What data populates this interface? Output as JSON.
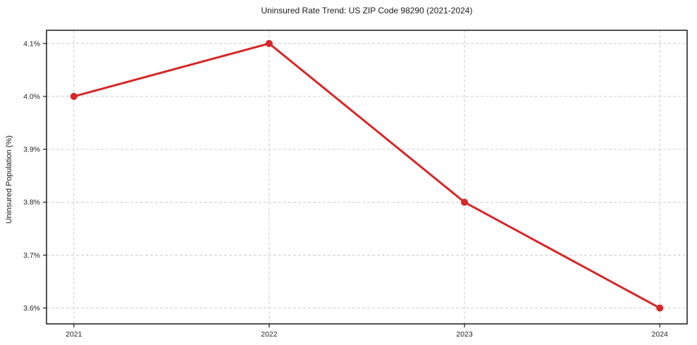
{
  "chart_data": {
    "type": "line",
    "title": "Uninsured Rate Trend: US ZIP Code 98290 (2021-2024)",
    "xlabel": "",
    "ylabel": "Uninsured Population (%)",
    "x": [
      2021,
      2022,
      2023,
      2024
    ],
    "series": [
      {
        "name": "Uninsured rate",
        "values": [
          4.0,
          4.1,
          3.8,
          3.6
        ]
      }
    ],
    "x_tick_labels": [
      "2021",
      "2022",
      "2023",
      "2024"
    ],
    "y_ticks": [
      3.6,
      3.7,
      3.8,
      3.9,
      4.0,
      4.1
    ],
    "y_tick_labels": [
      "3.6%",
      "3.7%",
      "3.8%",
      "3.9%",
      "4.0%",
      "4.1%"
    ],
    "xlim": [
      2020.86,
      2024.14
    ],
    "ylim": [
      3.57,
      4.125
    ],
    "grid": true,
    "grid_style": "dashed",
    "legend": "none",
    "colors": {
      "line": "#d62728",
      "marker": "#d62728",
      "grid": "#cccccc",
      "axis": "#1a1a1a",
      "tick_label": "#262626",
      "background": "#ffffff"
    }
  }
}
